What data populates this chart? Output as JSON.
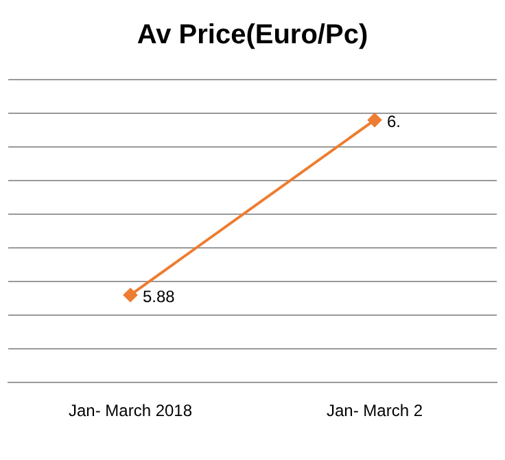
{
  "chart_data": {
    "type": "line",
    "title": "Av Price(Euro/Pc)",
    "categories": [
      "Jan- March 2018",
      "Jan- March 2"
    ],
    "series": [
      {
        "color": "#ed7d31",
        "values": [
          5.88,
          6.14
        ],
        "value_labels": [
          "5.88",
          "6."
        ]
      }
    ],
    "ylim": [
      5.75,
      6.2
    ],
    "yticks": [
      {
        "value": 5.75,
        "label": null
      },
      {
        "value": 5.8,
        "label": null
      },
      {
        "value": 5.85,
        "label": null
      },
      {
        "value": 5.9,
        "label": null
      },
      {
        "value": 5.95,
        "label": null
      },
      {
        "value": 6.0,
        "label": null
      },
      {
        "value": 6.05,
        "label": null
      },
      {
        "value": 6.1,
        "label": null
      },
      {
        "value": 6.15,
        "label": null
      },
      {
        "value": 6.2,
        "label": null
      }
    ],
    "grid": "y",
    "tick_labels": "x",
    "marker": "diamond",
    "line_style": "solid",
    "legend": false
  }
}
